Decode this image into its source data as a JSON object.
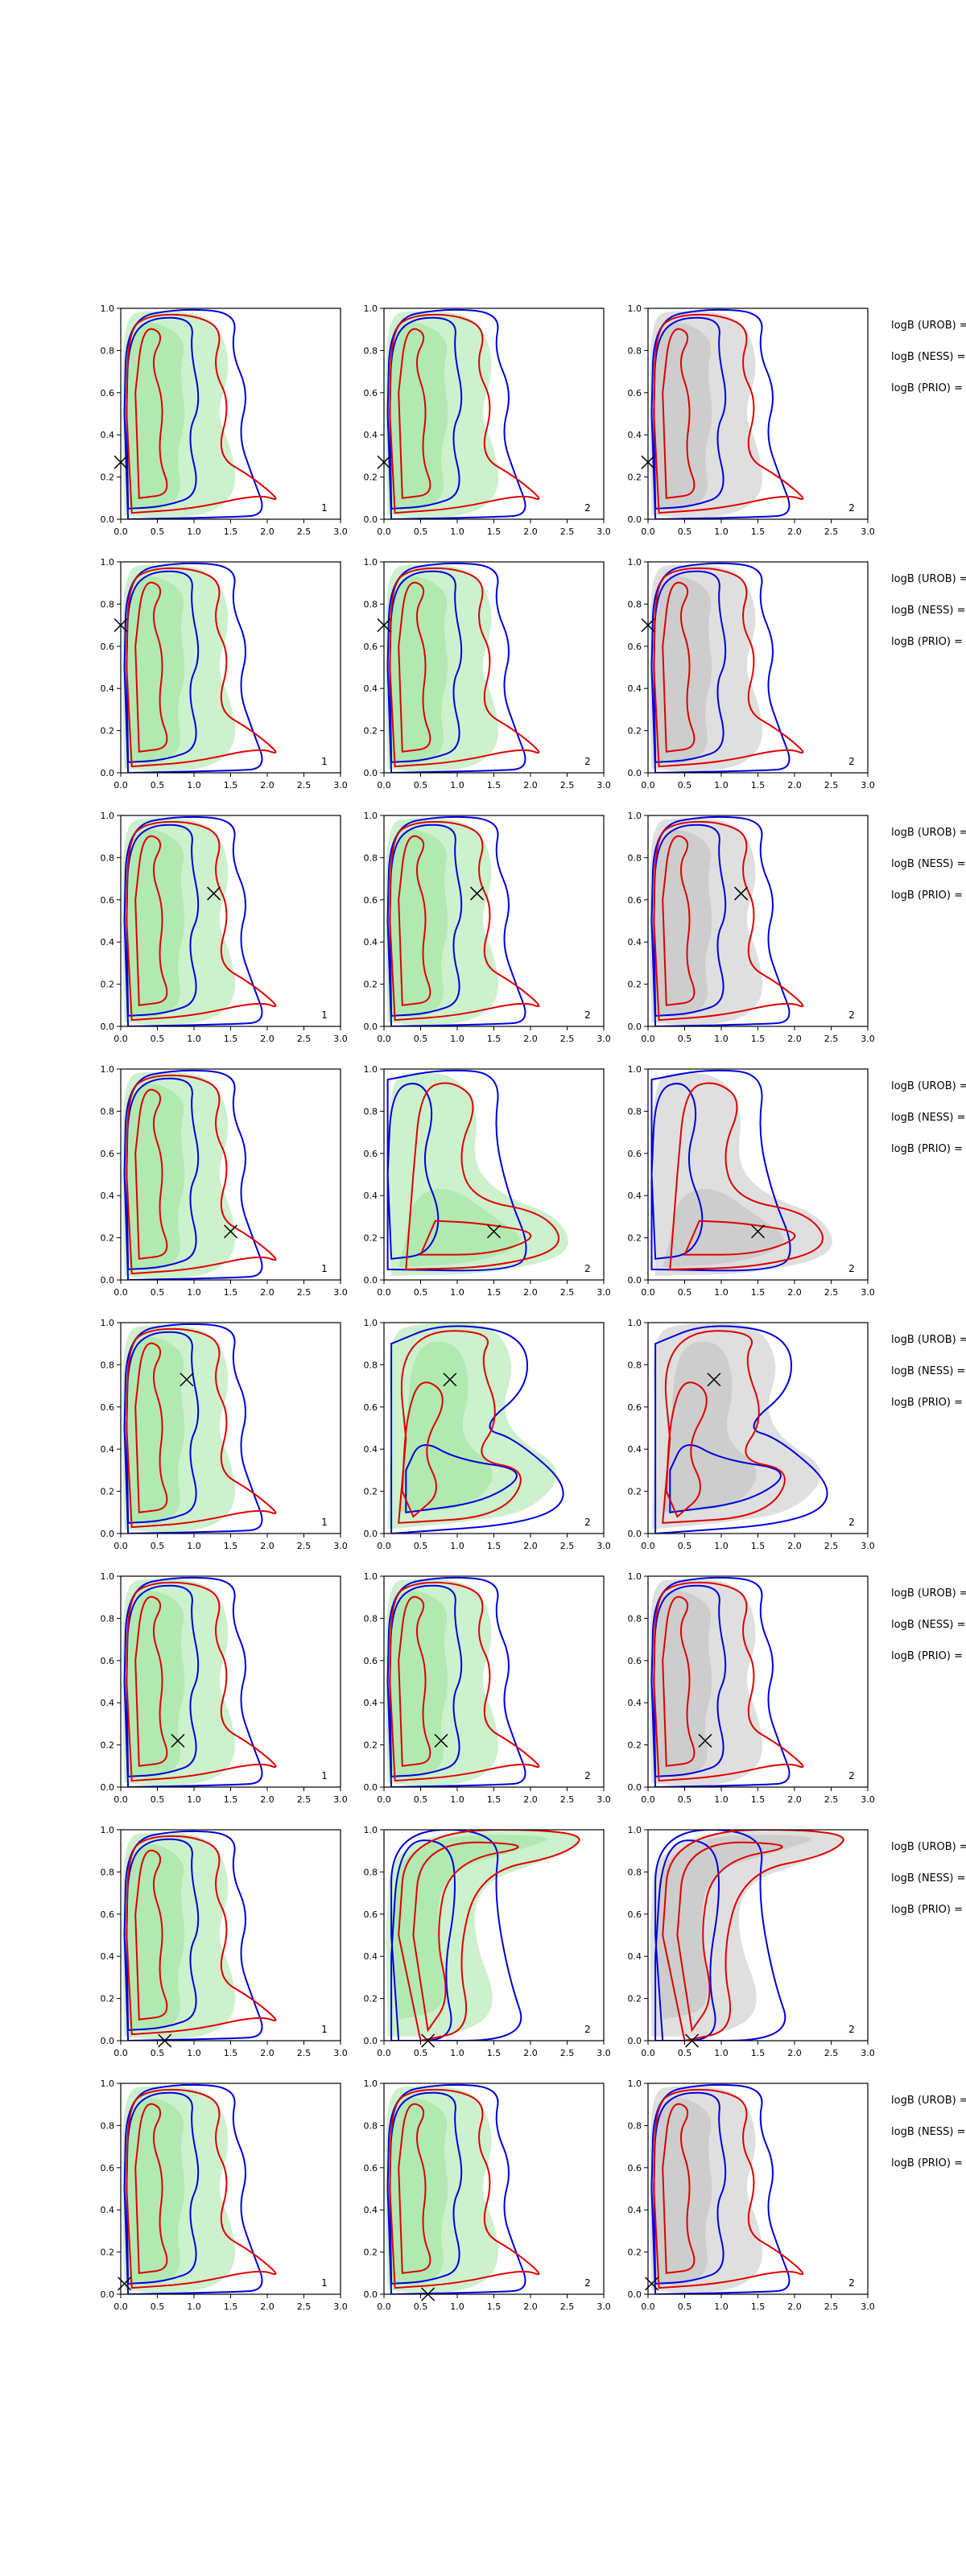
{
  "figure": {
    "type": "contour-grid",
    "rows": 8,
    "columns": 3,
    "xlim": [
      0.0,
      3.0
    ],
    "ylim": [
      0.0,
      1.0
    ],
    "xticks": [
      0.0,
      0.5,
      1.0,
      1.5,
      2.0,
      2.5,
      3.0
    ],
    "xtick_labels": [
      "0.0",
      "0.5",
      "1.0",
      "1.5",
      "2.0",
      "2.5",
      "3.0"
    ],
    "yticks": [
      0.0,
      0.2,
      0.4,
      0.6,
      0.8,
      1.0
    ],
    "ytick_labels": [
      "0.0",
      "0.2",
      "0.4",
      "0.6",
      "0.8",
      "1.0"
    ],
    "corner_labels": [
      "1",
      "2",
      "2"
    ],
    "side_labels": [
      "logB (UROB) =",
      "logB (NESS) =",
      "logB (PRIO) ="
    ]
  },
  "chart_data": {
    "type": "contour",
    "colors": {
      "fill_green": "#90e090",
      "fill_gray": "#b8b8b8",
      "contour_red": "#e00000",
      "contour_blue": "#0000e0",
      "marker": "#000000",
      "axis": "#000000"
    },
    "legend_text": [
      "logB (UROB) =",
      "logB (NESS) =",
      "logB (PRIO) ="
    ],
    "rows": [
      {
        "markers": [
          [
            0.0,
            0.27
          ],
          [
            0.0,
            0.27
          ],
          [
            0.0,
            0.27
          ]
        ],
        "shapes": [
          "tall",
          "tall",
          "tall"
        ]
      },
      {
        "markers": [
          [
            0.0,
            0.7
          ],
          [
            0.0,
            0.7
          ],
          [
            0.0,
            0.7
          ]
        ],
        "shapes": [
          "tall",
          "tall",
          "tall"
        ]
      },
      {
        "markers": [
          [
            1.27,
            0.63
          ],
          [
            1.27,
            0.63
          ],
          [
            1.27,
            0.63
          ]
        ],
        "shapes": [
          "tall",
          "tall",
          "tall"
        ]
      },
      {
        "markers": [
          [
            1.5,
            0.23
          ],
          [
            1.5,
            0.23
          ],
          [
            1.5,
            0.23
          ]
        ],
        "shapes": [
          "tall",
          "tail",
          "tail"
        ]
      },
      {
        "markers": [
          [
            0.9,
            0.73
          ],
          [
            0.9,
            0.73
          ],
          [
            0.9,
            0.73
          ]
        ],
        "shapes": [
          "tall",
          "loop",
          "loop"
        ]
      },
      {
        "markers": [
          [
            0.78,
            0.22
          ],
          [
            0.78,
            0.22
          ],
          [
            0.78,
            0.22
          ]
        ],
        "shapes": [
          "tall",
          "tall",
          "tall"
        ]
      },
      {
        "markers": [
          [
            0.6,
            0.0
          ],
          [
            0.6,
            0.0
          ],
          [
            0.6,
            0.0
          ]
        ],
        "shapes": [
          "tall",
          "top",
          "top"
        ]
      },
      {
        "markers": [
          [
            0.05,
            0.05
          ],
          [
            0.6,
            0.0
          ],
          [
            0.05,
            0.05
          ]
        ],
        "shapes": [
          "tall",
          "tall",
          "tall"
        ]
      }
    ]
  }
}
